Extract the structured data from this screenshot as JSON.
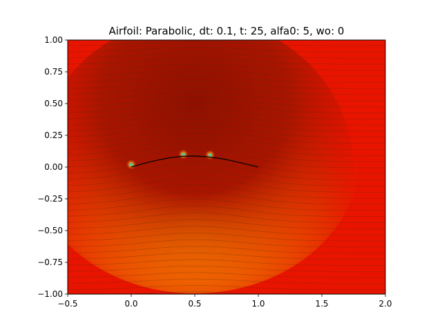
{
  "chart_data": {
    "type": "heatmap",
    "title": "Airfoil: Parabolic, dt: 0.1, t: 25, alfa0: 5, wo: 0",
    "xlabel": "",
    "ylabel": "",
    "xlim": [
      -0.5,
      2.0
    ],
    "ylim": [
      -1.0,
      1.0
    ],
    "x_ticks": [
      -0.5,
      0.0,
      0.5,
      1.0,
      1.5,
      2.0
    ],
    "x_tick_labels": [
      "−0.5",
      "0.0",
      "0.5",
      "1.0",
      "1.5",
      "2.0"
    ],
    "y_ticks": [
      -1.0,
      -0.75,
      -0.5,
      -0.25,
      0.0,
      0.25,
      0.5,
      0.75,
      1.0
    ],
    "y_tick_labels": [
      "−1.00",
      "−0.75",
      "−0.50",
      "−0.25",
      "0.00",
      "0.25",
      "0.50",
      "0.75",
      "1.00"
    ],
    "grid": false,
    "colormap": "red-orange-yellow",
    "colors": {
      "background": "#e81400",
      "high": "#ffcc00",
      "low": "#9a1200",
      "line": "#000000",
      "marker": "#30d0c0"
    },
    "airfoil": {
      "shape": "parabolic",
      "x": [
        0.0,
        0.1,
        0.2,
        0.3,
        0.4,
        0.5,
        0.6,
        0.7,
        0.8,
        0.9,
        1.0
      ],
      "y": [
        0.0,
        0.029,
        0.053,
        0.073,
        0.085,
        0.087,
        0.081,
        0.068,
        0.048,
        0.024,
        0.0
      ]
    },
    "hot_spots": [
      {
        "x": 0.0,
        "y": 0.02
      },
      {
        "x": 0.41,
        "y": 0.1
      },
      {
        "x": 0.62,
        "y": 0.095
      }
    ]
  }
}
